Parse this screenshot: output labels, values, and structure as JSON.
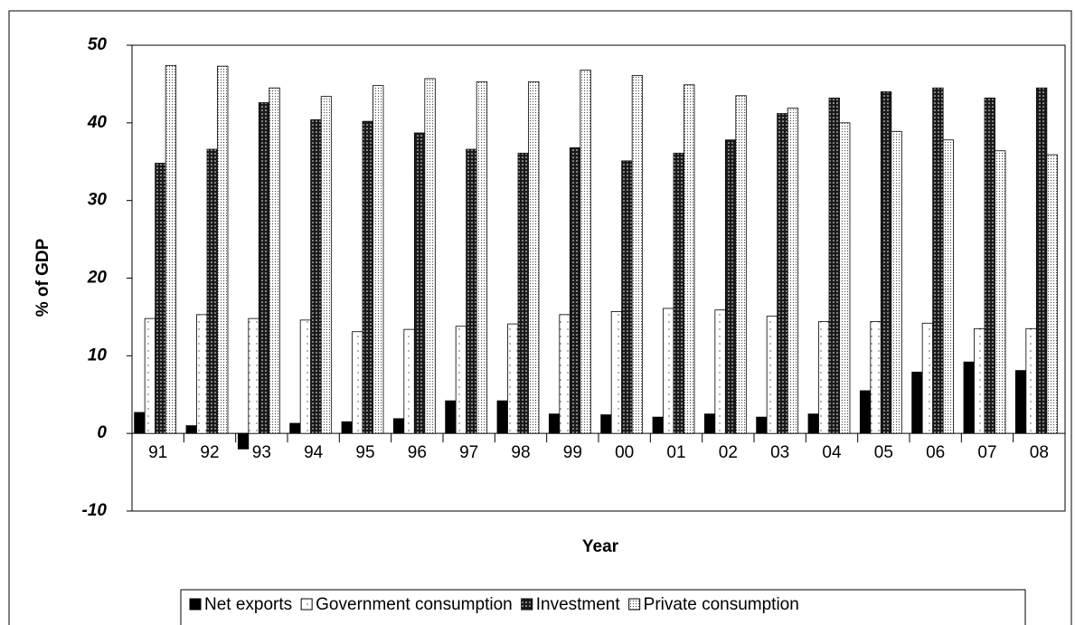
{
  "chart_data": {
    "type": "bar",
    "xlabel": "Year",
    "ylabel": "% of GDP",
    "categories": [
      "91",
      "92",
      "93",
      "94",
      "95",
      "96",
      "97",
      "98",
      "99",
      "00",
      "01",
      "02",
      "03",
      "04",
      "05",
      "06",
      "07",
      "08"
    ],
    "series": [
      {
        "name": "Net exports",
        "color": "#000000",
        "pattern": "solid",
        "values": [
          2.7,
          1.0,
          -2.0,
          1.3,
          1.5,
          1.9,
          4.2,
          4.2,
          2.5,
          2.4,
          2.1,
          2.5,
          2.1,
          2.5,
          5.5,
          7.9,
          9.2,
          8.1
        ]
      },
      {
        "name": "Government consumption",
        "color": "#ffffff",
        "pattern": "sparse-dots",
        "values": [
          14.8,
          15.3,
          14.8,
          14.6,
          13.1,
          13.4,
          13.8,
          14.1,
          15.3,
          15.7,
          16.1,
          15.9,
          15.1,
          14.4,
          14.4,
          14.2,
          13.5,
          13.5
        ]
      },
      {
        "name": "Investment",
        "color": "#1a1a1a",
        "pattern": "light-dots",
        "values": [
          34.8,
          36.6,
          42.6,
          40.4,
          40.2,
          38.7,
          36.6,
          36.1,
          36.8,
          35.1,
          36.1,
          37.8,
          41.2,
          43.2,
          44.0,
          44.5,
          43.2,
          44.5
        ]
      },
      {
        "name": "Private consumption",
        "color": "#ffffff",
        "pattern": "dense-dots",
        "values": [
          47.4,
          47.3,
          44.5,
          43.4,
          44.8,
          45.7,
          45.3,
          45.3,
          46.8,
          46.1,
          44.9,
          43.5,
          41.9,
          40.0,
          38.9,
          37.8,
          36.4,
          35.9
        ]
      }
    ],
    "ylim": [
      -10,
      50
    ],
    "yticks": [
      -10,
      0,
      10,
      20,
      30,
      40,
      50
    ],
    "grid": false
  }
}
